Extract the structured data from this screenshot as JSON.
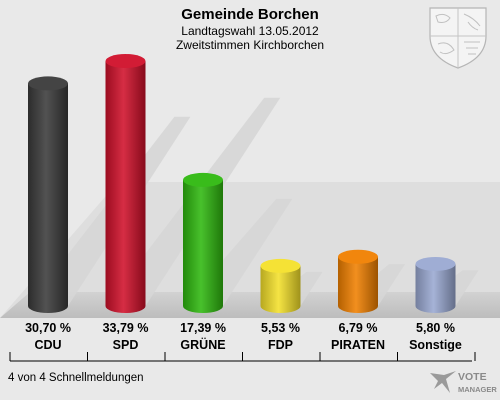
{
  "chart_data": {
    "type": "bar",
    "title": "Gemeinde Borchen",
    "subtitle_line1": "Landtagswahl 13.05.2012",
    "subtitle_line2": "Zweitstimmen Kirchborchen",
    "categories": [
      "CDU",
      "SPD",
      "GRÜNE",
      "FDP",
      "PIRATEN",
      "Sonstige"
    ],
    "values": [
      30.7,
      33.79,
      17.39,
      5.53,
      6.79,
      5.8
    ],
    "value_labels": [
      "30,70 %",
      "33,79 %",
      "17,39 %",
      "5,53 %",
      "6,79 %",
      "5,80 %"
    ],
    "colors": [
      "#3a3a3a",
      "#d0102a",
      "#2fb80f",
      "#f4e02a",
      "#f08000",
      "#9aa9d2"
    ],
    "ylim": [
      0,
      35
    ]
  },
  "footer_text": "4 von 4 Schnellmeldungen",
  "logo_text": [
    "VOTE",
    "MANAGER"
  ]
}
